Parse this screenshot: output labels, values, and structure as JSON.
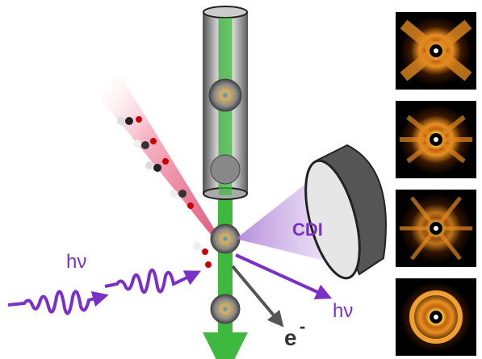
{
  "labels": {
    "incoming_photon": "hν",
    "cdi": "CDI",
    "outgoing_photon": "hν",
    "electron": "e",
    "electron_charge": "-"
  }
}
